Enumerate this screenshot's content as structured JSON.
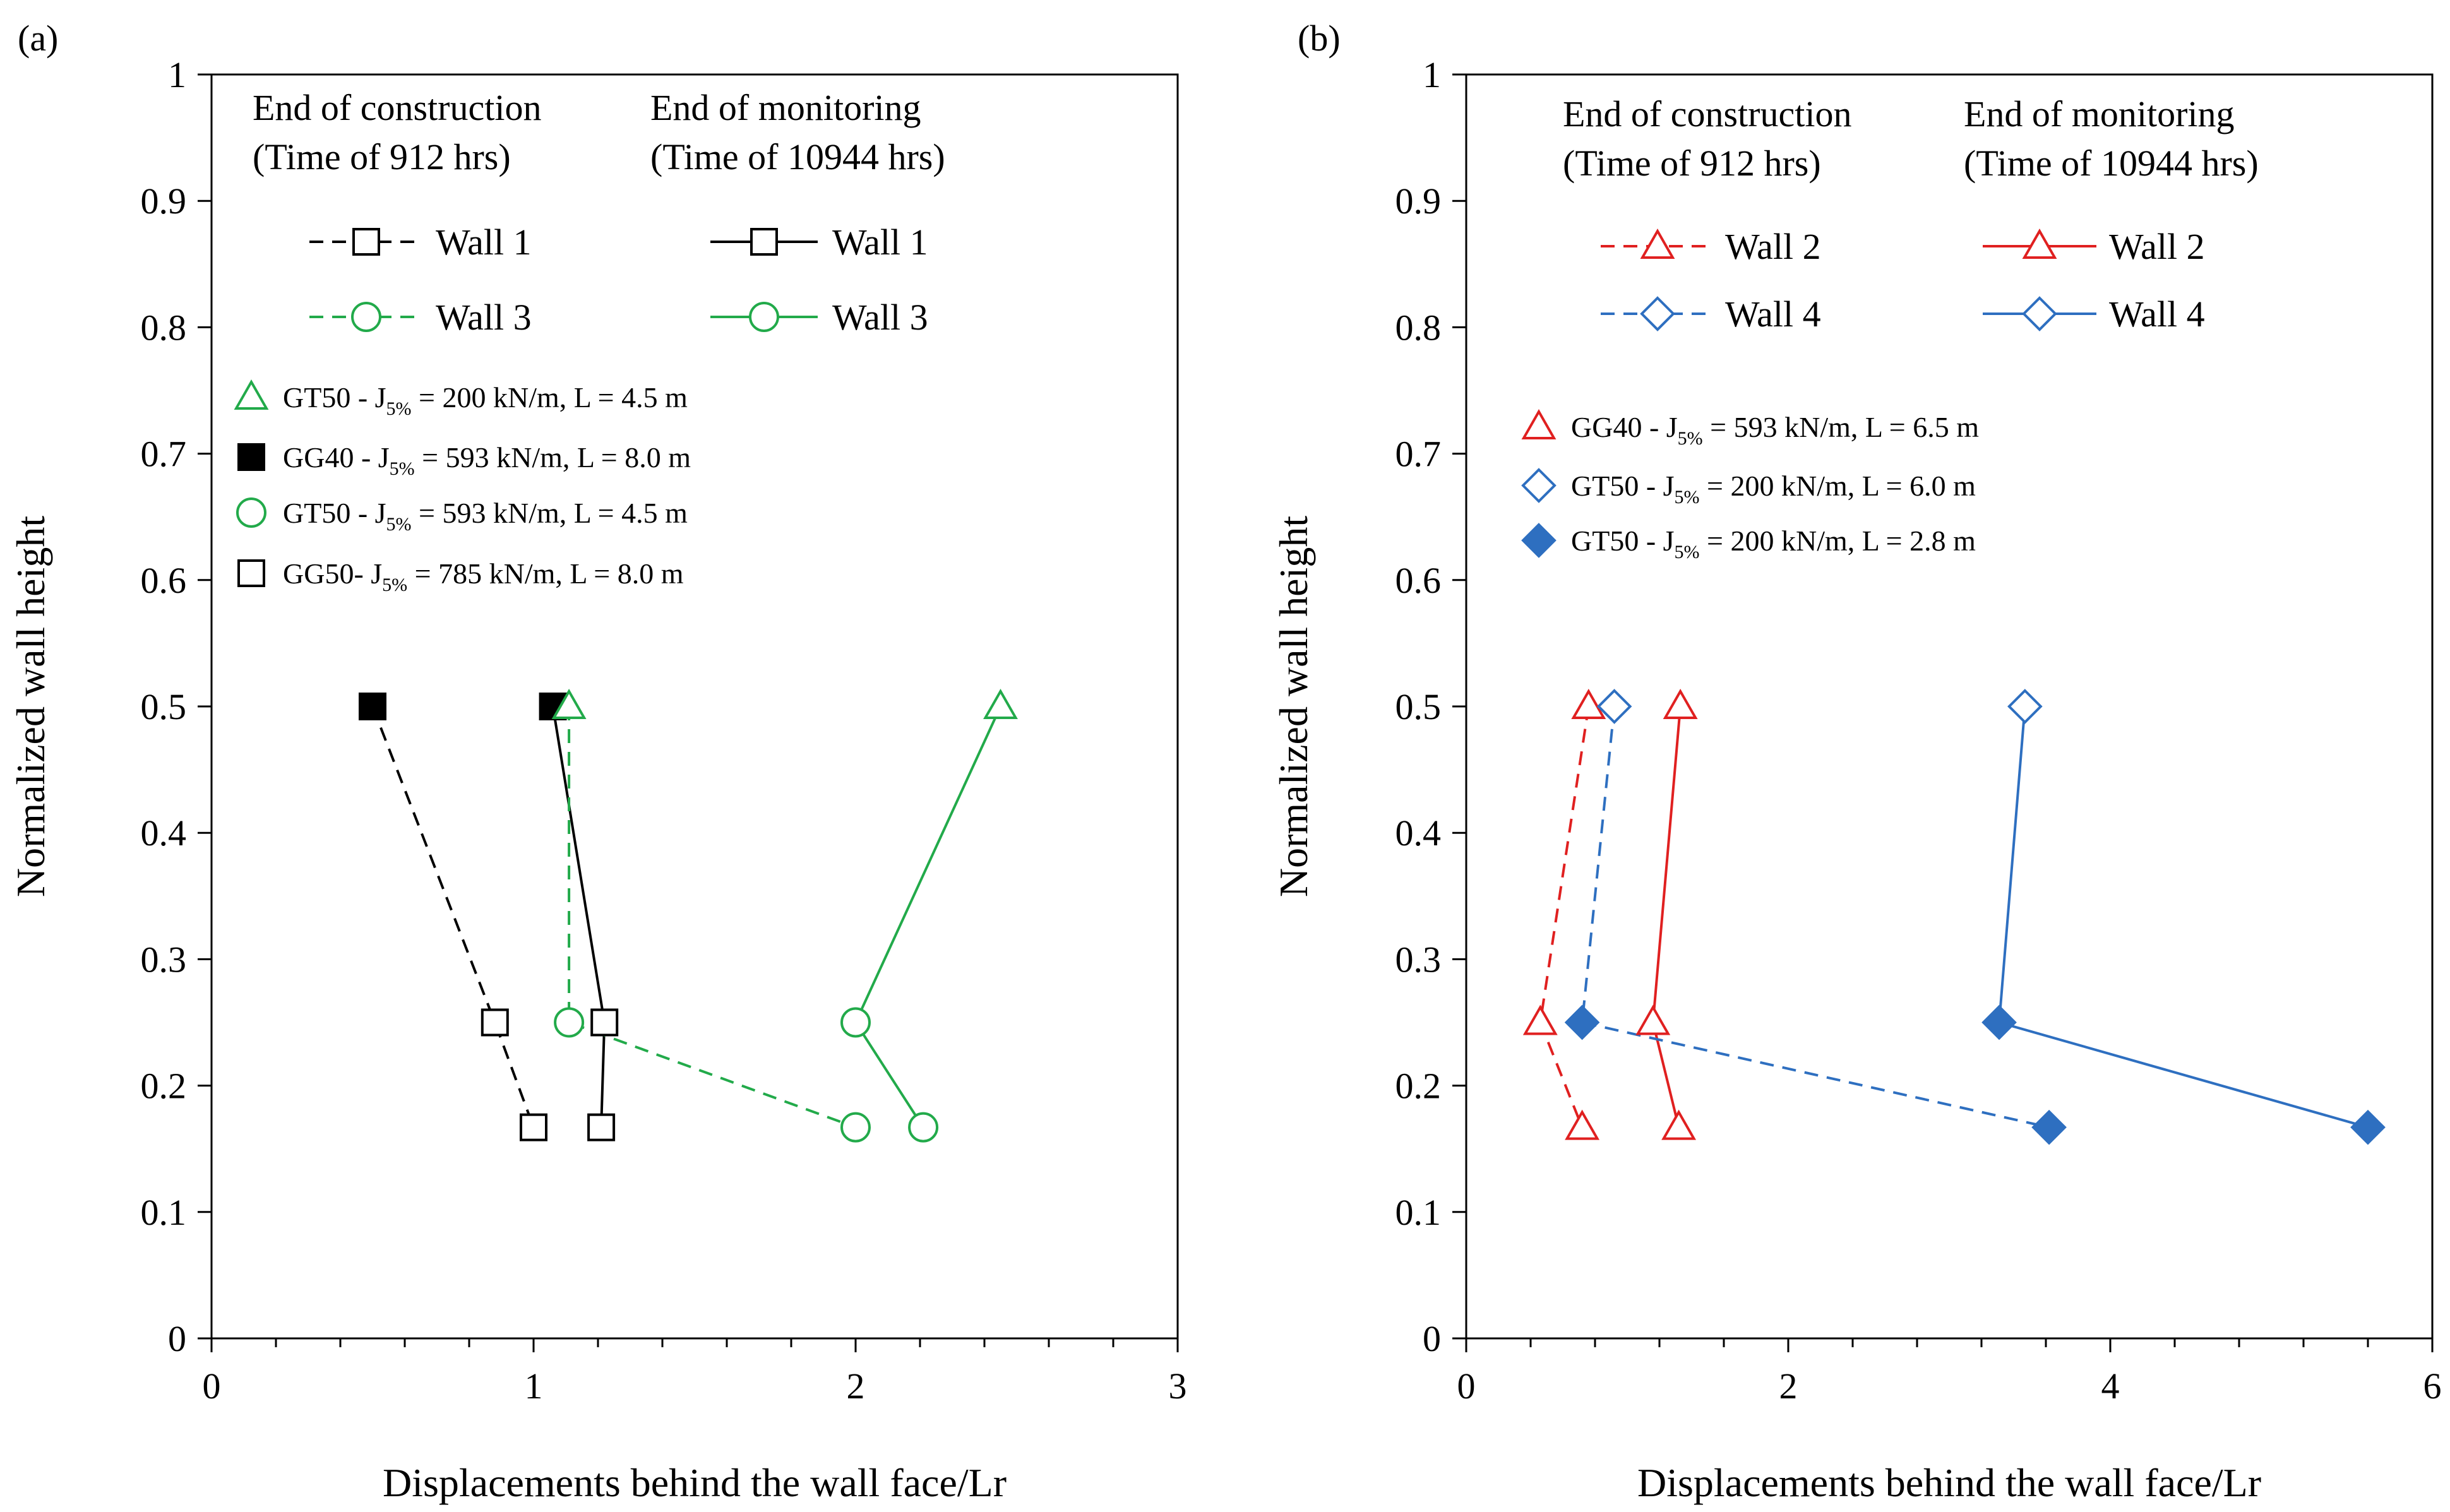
{
  "chart_data": [
    {
      "panel_label": "(a)",
      "type": "line",
      "xlabel": "Displacements  behind  the wall  face/Lr",
      "ylabel": "Normalized  wall  height",
      "xlim": [
        0,
        3
      ],
      "ylim": [
        0,
        1
      ],
      "xticks": [
        "0",
        "1",
        "2",
        "3"
      ],
      "yticks": [
        "0",
        "0.1",
        "0.2",
        "0.3",
        "0.4",
        "0.5",
        "0.6",
        "0.7",
        "0.8",
        "0.9",
        "1"
      ],
      "grid": false,
      "legend_headers": [
        {
          "line1": "End of construction",
          "line2": "(Time  of 912  hrs)"
        },
        {
          "line1": "End of monitoring",
          "line2": "(Time  of 10944  hrs)"
        }
      ],
      "series": [
        {
          "name": "Wall 1",
          "phase": "End of construction",
          "color": "#000000",
          "dash": true,
          "marker": "square-open",
          "x": [
            0.5,
            0.88,
            1.0
          ],
          "y": [
            0.5,
            0.25,
            0.167
          ]
        },
        {
          "name": "Wall 1",
          "phase": "End of monitoring",
          "color": "#000000",
          "dash": false,
          "marker": "square-open",
          "x": [
            1.06,
            1.22,
            1.21
          ],
          "y": [
            0.5,
            0.25,
            0.167
          ]
        },
        {
          "name": "Wall 3",
          "phase": "End of construction",
          "color": "#22aa4a",
          "dash": true,
          "marker": "circle-open",
          "x": [
            1.11,
            1.11,
            2.0
          ],
          "y": [
            0.5,
            0.25,
            0.167
          ]
        },
        {
          "name": "Wall 3",
          "phase": "End of monitoring",
          "color": "#22aa4a",
          "dash": false,
          "marker": "circle-open",
          "x": [
            2.45,
            2.0,
            2.21
          ],
          "y": [
            0.5,
            0.25,
            0.167
          ]
        }
      ],
      "point_markers": [
        {
          "x": 0.5,
          "y": 0.5,
          "marker": "square-filled",
          "color": "#000000"
        },
        {
          "x": 1.06,
          "y": 0.5,
          "marker": "square-filled",
          "color": "#000000"
        },
        {
          "x": 1.11,
          "y": 0.5,
          "marker": "triangle-open",
          "color": "#22aa4a"
        },
        {
          "x": 2.45,
          "y": 0.5,
          "marker": "triangle-open",
          "color": "#22aa4a"
        },
        {
          "x": 0.88,
          "y": 0.25,
          "marker": "square-open",
          "color": "#000000"
        },
        {
          "x": 1.22,
          "y": 0.25,
          "marker": "square-open",
          "color": "#000000"
        },
        {
          "x": 1.0,
          "y": 0.167,
          "marker": "square-open",
          "color": "#000000"
        },
        {
          "x": 1.21,
          "y": 0.167,
          "marker": "square-open",
          "color": "#000000"
        },
        {
          "x": 1.11,
          "y": 0.25,
          "marker": "circle-open",
          "color": "#22aa4a"
        },
        {
          "x": 2.0,
          "y": 0.25,
          "marker": "circle-open",
          "color": "#22aa4a"
        },
        {
          "x": 2.0,
          "y": 0.167,
          "marker": "circle-open",
          "color": "#22aa4a"
        },
        {
          "x": 2.21,
          "y": 0.167,
          "marker": "circle-open",
          "color": "#22aa4a"
        }
      ],
      "marker_legend": [
        {
          "marker": "triangle-open",
          "color": "#22aa4a",
          "pre": "GT50 - J",
          "sub": "5%",
          "post": " = 200 kN/m, L = 4.5 m"
        },
        {
          "marker": "square-filled",
          "color": "#000000",
          "pre": "GG40 - J",
          "sub": "5%",
          "post": " = 593 kN/m, L = 8.0 m"
        },
        {
          "marker": "circle-open",
          "color": "#22aa4a",
          "pre": "GT50 - J",
          "sub": "5%",
          "post": " = 593 kN/m, L = 4.5 m"
        },
        {
          "marker": "square-open",
          "color": "#000000",
          "pre": "GG50- J",
          "sub": "5%",
          "post": " = 785 kN/m, L = 8.0 m"
        }
      ]
    },
    {
      "panel_label": "(b)",
      "type": "line",
      "xlabel": "Displacements  behind  the wall  face/Lr",
      "ylabel": "Normalized  wall  height",
      "xlim": [
        0,
        6
      ],
      "ylim": [
        0,
        1
      ],
      "xticks": [
        "0",
        "2",
        "4",
        "6"
      ],
      "yticks": [
        "0",
        "0.1",
        "0.2",
        "0.3",
        "0.4",
        "0.5",
        "0.6",
        "0.7",
        "0.8",
        "0.9",
        "1"
      ],
      "grid": false,
      "legend_headers": [
        {
          "line1": "End of construction",
          "line2": "(Time  of 912  hrs)"
        },
        {
          "line1": "End of monitoring",
          "line2": "(Time  of 10944  hrs)"
        }
      ],
      "series": [
        {
          "name": "Wall 2",
          "phase": "End of construction",
          "color": "#e02020",
          "dash": true,
          "marker": "triangle-open",
          "x": [
            0.76,
            0.46,
            0.72
          ],
          "y": [
            0.5,
            0.25,
            0.167
          ]
        },
        {
          "name": "Wall 2",
          "phase": "End of monitoring",
          "color": "#e02020",
          "dash": false,
          "marker": "triangle-open",
          "x": [
            1.33,
            1.16,
            1.32
          ],
          "y": [
            0.5,
            0.25,
            0.167
          ]
        },
        {
          "name": "Wall 4",
          "phase": "End of construction",
          "color": "#2e6fc0",
          "dash": true,
          "marker": "diamond-open",
          "x": [
            0.92,
            0.72,
            3.62
          ],
          "y": [
            0.5,
            0.25,
            0.167
          ]
        },
        {
          "name": "Wall 4",
          "phase": "End of monitoring",
          "color": "#2e6fc0",
          "dash": false,
          "marker": "diamond-open",
          "x": [
            3.47,
            3.31,
            5.6
          ],
          "y": [
            0.5,
            0.25,
            0.167
          ]
        }
      ],
      "point_markers": [
        {
          "x": 0.76,
          "y": 0.5,
          "marker": "triangle-open",
          "color": "#e02020"
        },
        {
          "x": 1.33,
          "y": 0.5,
          "marker": "triangle-open",
          "color": "#e02020"
        },
        {
          "x": 0.46,
          "y": 0.25,
          "marker": "triangle-open",
          "color": "#e02020"
        },
        {
          "x": 1.16,
          "y": 0.25,
          "marker": "triangle-open",
          "color": "#e02020"
        },
        {
          "x": 0.72,
          "y": 0.167,
          "marker": "triangle-open",
          "color": "#e02020"
        },
        {
          "x": 1.32,
          "y": 0.167,
          "marker": "triangle-open",
          "color": "#e02020"
        },
        {
          "x": 0.92,
          "y": 0.5,
          "marker": "diamond-open",
          "color": "#2e6fc0"
        },
        {
          "x": 3.47,
          "y": 0.5,
          "marker": "diamond-open",
          "color": "#2e6fc0"
        },
        {
          "x": 0.72,
          "y": 0.25,
          "marker": "diamond-filled",
          "color": "#2e6fc0"
        },
        {
          "x": 3.31,
          "y": 0.25,
          "marker": "diamond-filled",
          "color": "#2e6fc0"
        },
        {
          "x": 3.62,
          "y": 0.167,
          "marker": "diamond-filled",
          "color": "#2e6fc0"
        },
        {
          "x": 5.6,
          "y": 0.167,
          "marker": "diamond-filled",
          "color": "#2e6fc0"
        }
      ],
      "marker_legend": [
        {
          "marker": "triangle-open",
          "color": "#e02020",
          "pre": "GG40 - J",
          "sub": "5%",
          "post": " = 593 kN/m, L = 6.5 m"
        },
        {
          "marker": "diamond-open",
          "color": "#2e6fc0",
          "pre": "GT50 - J",
          "sub": "5%",
          "post": " = 200 kN/m, L = 6.0 m"
        },
        {
          "marker": "diamond-filled",
          "color": "#2e6fc0",
          "pre": "GT50 - J",
          "sub": "5%",
          "post": " = 200 kN/m, L = 2.8 m"
        }
      ]
    }
  ]
}
